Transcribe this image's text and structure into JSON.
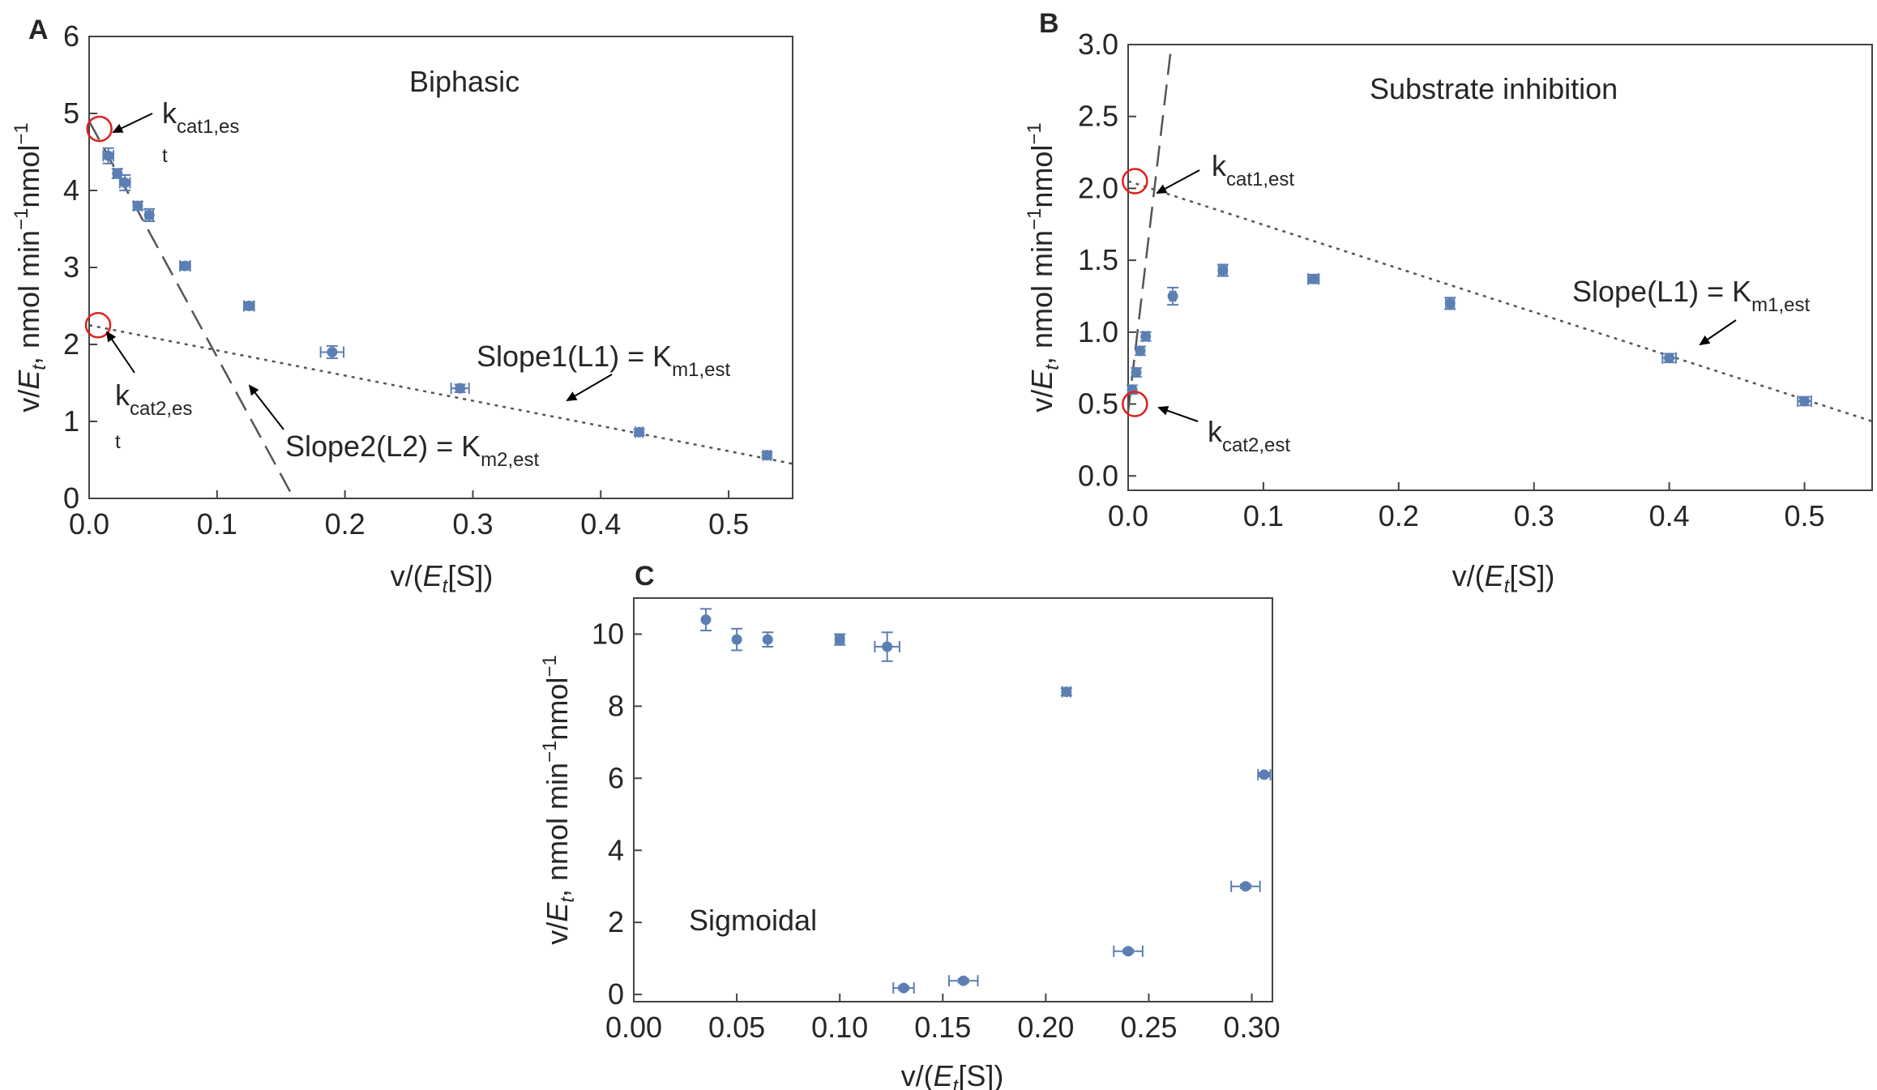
{
  "chart_data": [
    {
      "panel": "A",
      "type": "scatter",
      "title": "Biphasic",
      "xlabel": "v/(E_t[S])",
      "ylabel": "v/E_t, nmol min^-1 nmol^-1",
      "xlim": [
        0,
        0.55
      ],
      "ylim": [
        0,
        6
      ],
      "xticks": [
        "0.0",
        "0.1",
        "0.2",
        "0.3",
        "0.4",
        "0.5"
      ],
      "yticks": [
        "0",
        "1",
        "2",
        "3",
        "4",
        "5",
        "6"
      ],
      "grid": false,
      "points": [
        {
          "x": 0.015,
          "y": 4.45,
          "xerr": 0.004,
          "yerr": 0.1
        },
        {
          "x": 0.022,
          "y": 4.22,
          "xerr": 0.003,
          "yerr": 0.06
        },
        {
          "x": 0.028,
          "y": 4.1,
          "xerr": 0.004,
          "yerr": 0.1
        },
        {
          "x": 0.038,
          "y": 3.8,
          "xerr": 0.003,
          "yerr": 0.05
        },
        {
          "x": 0.047,
          "y": 3.68,
          "xerr": 0.003,
          "yerr": 0.08
        },
        {
          "x": 0.075,
          "y": 3.02,
          "xerr": 0.004,
          "yerr": 0.05
        },
        {
          "x": 0.125,
          "y": 2.5,
          "xerr": 0.004,
          "yerr": 0.05
        },
        {
          "x": 0.19,
          "y": 1.9,
          "xerr": 0.009,
          "yerr": 0.08
        },
        {
          "x": 0.29,
          "y": 1.43,
          "xerr": 0.007,
          "yerr": 0.05
        },
        {
          "x": 0.43,
          "y": 0.86,
          "xerr": 0.003,
          "yerr": 0.04
        },
        {
          "x": 0.53,
          "y": 0.56,
          "xerr": 0.003,
          "yerr": 0.04
        }
      ],
      "lines": [
        {
          "style": "dashed",
          "x0": 0.0,
          "y0": 4.9,
          "x1": 0.16,
          "y1": 0.0
        },
        {
          "style": "dotted",
          "x0": 0.0,
          "y0": 2.25,
          "x1": 0.55,
          "y1": 0.45
        }
      ],
      "circles": [
        {
          "x": 0.008,
          "y": 4.8
        },
        {
          "x": 0.007,
          "y": 2.25
        }
      ],
      "annotations": [
        {
          "main": "k",
          "sub": "cat1,es",
          "sub2": "t"
        },
        {
          "main": "k",
          "sub": "cat2,es",
          "sub2": "t"
        },
        {
          "main": "Slope1(L1) = K",
          "sub": "m1,est"
        },
        {
          "main": "Slope2(L2) = K",
          "sub": "m2,est"
        }
      ]
    },
    {
      "panel": "B",
      "type": "scatter",
      "title": "Substrate inhibition",
      "xlabel": "v/(E_t[S])",
      "ylabel": "v/E_t, nmol min^-1 nmol^-1",
      "xlim": [
        0,
        0.55
      ],
      "ylim": [
        -0.1,
        3.0
      ],
      "xticks": [
        "0.0",
        "0.1",
        "0.2",
        "0.3",
        "0.4",
        "0.5"
      ],
      "yticks": [
        "0.0",
        "0.5",
        "1.0",
        "1.5",
        "2.0",
        "2.5",
        "3.0"
      ],
      "grid": false,
      "points": [
        {
          "x": 0.003,
          "y": 0.6,
          "xerr": 0.0,
          "yerr": 0.03
        },
        {
          "x": 0.006,
          "y": 0.72,
          "xerr": 0.0,
          "yerr": 0.03
        },
        {
          "x": 0.009,
          "y": 0.87,
          "xerr": 0.0,
          "yerr": 0.03
        },
        {
          "x": 0.013,
          "y": 0.97,
          "xerr": 0.002,
          "yerr": 0.03
        },
        {
          "x": 0.033,
          "y": 1.25,
          "xerr": 0.002,
          "yerr": 0.06
        },
        {
          "x": 0.07,
          "y": 1.43,
          "xerr": 0.003,
          "yerr": 0.04
        },
        {
          "x": 0.137,
          "y": 1.37,
          "xerr": 0.004,
          "yerr": 0.03
        },
        {
          "x": 0.238,
          "y": 1.2,
          "xerr": 0.003,
          "yerr": 0.04
        },
        {
          "x": 0.4,
          "y": 0.82,
          "xerr": 0.005,
          "yerr": 0.03
        },
        {
          "x": 0.5,
          "y": 0.52,
          "xerr": 0.005,
          "yerr": 0.03
        }
      ],
      "lines": [
        {
          "style": "dashed",
          "x0": 0.0,
          "y0": 0.45,
          "x1": 0.032,
          "y1": 3.0
        },
        {
          "style": "dotted",
          "x0": 0.0,
          "y0": 2.05,
          "x1": 0.55,
          "y1": 0.38
        }
      ],
      "circles": [
        {
          "x": 0.005,
          "y": 2.05
        },
        {
          "x": 0.005,
          "y": 0.5
        }
      ],
      "annotations": [
        {
          "main": "k",
          "sub": "cat1,est"
        },
        {
          "main": "k",
          "sub": "cat2,est"
        },
        {
          "main": "Slope(L1) = K",
          "sub": "m1,est"
        }
      ]
    },
    {
      "panel": "C",
      "type": "scatter",
      "title": "Sigmoidal",
      "xlabel": "v/(E_t[S])",
      "ylabel": "v/E_t, nmol min^-1 nmol^-1",
      "xlim": [
        0,
        0.31
      ],
      "ylim": [
        -0.2,
        11
      ],
      "xticks": [
        "0.00",
        "0.05",
        "0.10",
        "0.15",
        "0.20",
        "0.25",
        "0.30"
      ],
      "yticks": [
        "0",
        "2",
        "4",
        "6",
        "8",
        "10"
      ],
      "grid": false,
      "points": [
        {
          "x": 0.035,
          "y": 10.4,
          "xerr": 0.0,
          "yerr": 0.3
        },
        {
          "x": 0.05,
          "y": 9.85,
          "xerr": 0.0,
          "yerr": 0.3
        },
        {
          "x": 0.065,
          "y": 9.85,
          "xerr": 0.0,
          "yerr": 0.2
        },
        {
          "x": 0.1,
          "y": 9.85,
          "xerr": 0.002,
          "yerr": 0.15
        },
        {
          "x": 0.123,
          "y": 9.65,
          "xerr": 0.006,
          "yerr": 0.4
        },
        {
          "x": 0.131,
          "y": 0.18,
          "xerr": 0.005,
          "yerr": 0.05
        },
        {
          "x": 0.16,
          "y": 0.38,
          "xerr": 0.007,
          "yerr": 0.05
        },
        {
          "x": 0.21,
          "y": 8.4,
          "xerr": 0.002,
          "yerr": 0.1
        },
        {
          "x": 0.24,
          "y": 1.2,
          "xerr": 0.007,
          "yerr": 0.05
        },
        {
          "x": 0.297,
          "y": 3.0,
          "xerr": 0.007,
          "yerr": 0.05
        },
        {
          "x": 0.306,
          "y": 6.1,
          "xerr": 0.003,
          "yerr": 0.05
        }
      ],
      "lines": [],
      "circles": [],
      "annotations": []
    }
  ],
  "panel_labels": [
    "A",
    "B",
    "C"
  ],
  "axis_text": {
    "xlabel_main": "v/(",
    "xlabel_italic": "E",
    "xlabel_sub": "t",
    "xlabel_tail": "[S])",
    "ylabel_main": "v/",
    "ylabel_italic": "E",
    "ylabel_sub": "t",
    "ylabel_mid": ", nmol min",
    "ylabel_sup1": "−1",
    "ylabel_mid2": "nmol",
    "ylabel_sup2": "−1"
  },
  "colors": {
    "points": "#5b7fb3",
    "errorbars": "#5b7fb3",
    "fit_lines": "#555555",
    "circles": "#e0201b",
    "axes": "#444444"
  }
}
